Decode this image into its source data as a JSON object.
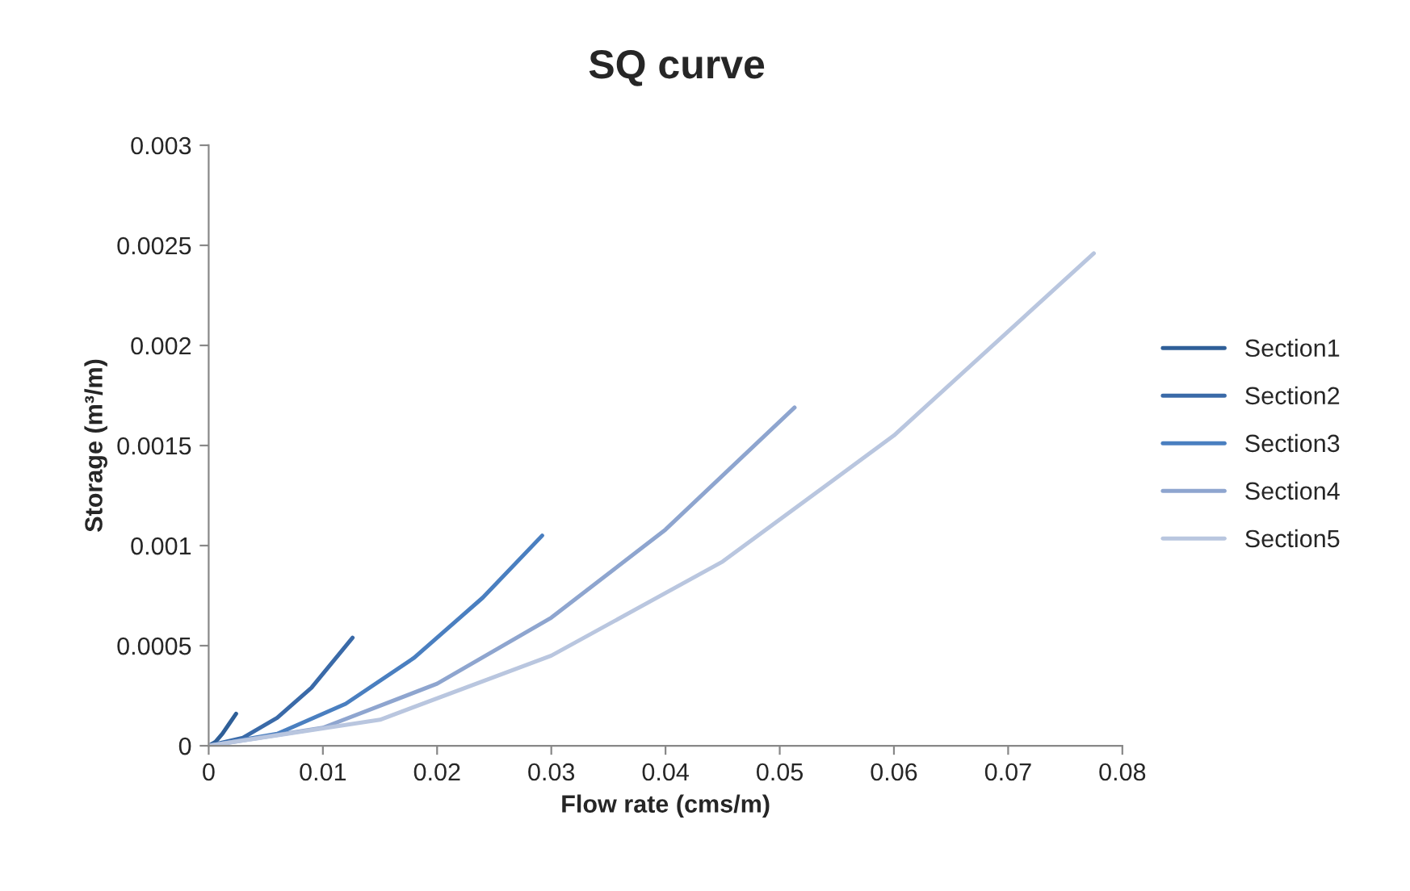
{
  "chart_data": {
    "type": "line",
    "title": "SQ curve",
    "xlabel": "Flow rate (cms/m)",
    "ylabel": "Storage (m³/m)",
    "xlim": [
      0,
      0.08
    ],
    "xticks": [
      0,
      0.01,
      0.02,
      0.03,
      0.04,
      0.05,
      0.06,
      0.07,
      0.08
    ],
    "ylim": [
      0,
      0.003
    ],
    "yticks": [
      0,
      0.0005,
      0.001,
      0.0015,
      0.002,
      0.0025,
      0.003
    ],
    "grid": false,
    "legend": "right",
    "marker": "none",
    "line_style": "solid",
    "series": [
      {
        "name": "Section1",
        "color": "#2f5f98",
        "x": [
          0,
          0.0006,
          0.0012,
          0.0018,
          0.0024
        ],
        "values": [
          0,
          2e-05,
          6e-05,
          0.00011,
          0.00016
        ]
      },
      {
        "name": "Section2",
        "color": "#3a6aa8",
        "x": [
          0,
          0.003,
          0.006,
          0.009,
          0.0126
        ],
        "values": [
          0,
          4e-05,
          0.00014,
          0.00029,
          0.00054
        ]
      },
      {
        "name": "Section3",
        "color": "#4a7fc0",
        "x": [
          0,
          0.006,
          0.012,
          0.018,
          0.024,
          0.0292
        ],
        "values": [
          0,
          6e-05,
          0.00021,
          0.00044,
          0.00074,
          0.00105
        ]
      },
      {
        "name": "Section4",
        "color": "#8ea5cf",
        "x": [
          0,
          0.01,
          0.02,
          0.03,
          0.04,
          0.0513
        ],
        "values": [
          0,
          9e-05,
          0.00031,
          0.00064,
          0.00108,
          0.00169
        ]
      },
      {
        "name": "Section5",
        "color": "#b9c6df",
        "x": [
          0,
          0.015,
          0.03,
          0.045,
          0.06,
          0.0775
        ],
        "values": [
          0,
          0.00013,
          0.00045,
          0.00092,
          0.00155,
          0.00246
        ]
      }
    ]
  }
}
